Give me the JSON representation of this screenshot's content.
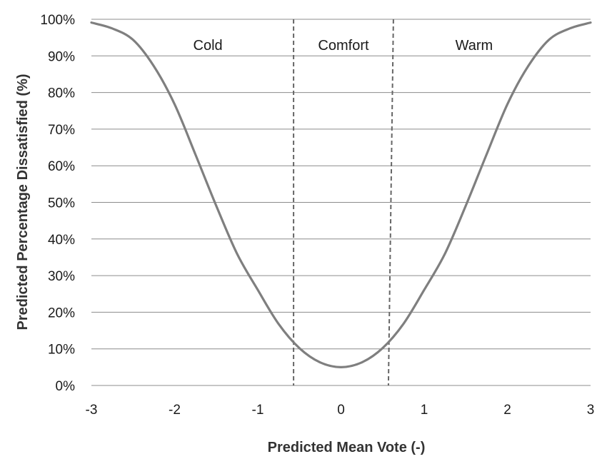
{
  "chart_data": {
    "type": "line",
    "title": "",
    "xlabel": "Predicted Mean Vote (-)",
    "ylabel": "Predicted Percentage Dissatisfied (%)",
    "xlim": [
      -3,
      3
    ],
    "ylim": [
      0,
      100
    ],
    "x_ticks": [
      -3,
      -2,
      -1,
      0,
      1,
      2,
      3
    ],
    "x_tick_labels": [
      "-3",
      "-2",
      "-1",
      "0",
      "1",
      "2",
      "3"
    ],
    "y_ticks": [
      0,
      10,
      20,
      30,
      40,
      50,
      60,
      70,
      80,
      90,
      100
    ],
    "y_tick_labels": [
      "0%",
      "10%",
      "20%",
      "30%",
      "40%",
      "50%",
      "60%",
      "70%",
      "80%",
      "90%",
      "100%"
    ],
    "grid": "horizontal",
    "legend": "none",
    "series": [
      {
        "x": [
          -3,
          -2.75,
          -2.5,
          -2.25,
          -2,
          -1.75,
          -1.5,
          -1.25,
          -1,
          -0.75,
          -0.5,
          -0.25,
          0,
          0.25,
          0.5,
          0.75,
          1,
          1.25,
          1.5,
          1.75,
          2,
          2.25,
          2.5,
          2.75,
          3
        ],
        "values": [
          99.1,
          97.5,
          94.4,
          87.2,
          76.8,
          63.1,
          49.1,
          36.0,
          26.1,
          16.8,
          10.2,
          6.3,
          5.0,
          6.3,
          10.2,
          16.8,
          26.1,
          36.0,
          49.1,
          63.1,
          76.8,
          87.2,
          94.4,
          97.5,
          99.1
        ],
        "color": "#7f7f7f"
      }
    ],
    "boundaries": [
      {
        "x_top": -0.57,
        "x_bottom": -0.57
      },
      {
        "x_top": 0.63,
        "x_bottom": 0.57
      }
    ],
    "region_labels": [
      {
        "text": "Cold",
        "x": -1.6,
        "y": 93
      },
      {
        "text": "Comfort",
        "x": 0.03,
        "y": 93
      },
      {
        "text": "Warm",
        "x": 1.6,
        "y": 93
      }
    ],
    "colors": {
      "curve": "#7f7f7f",
      "grid": "#8c8c8c",
      "boundary": "#666666",
      "text": "#1a1a1a"
    }
  }
}
